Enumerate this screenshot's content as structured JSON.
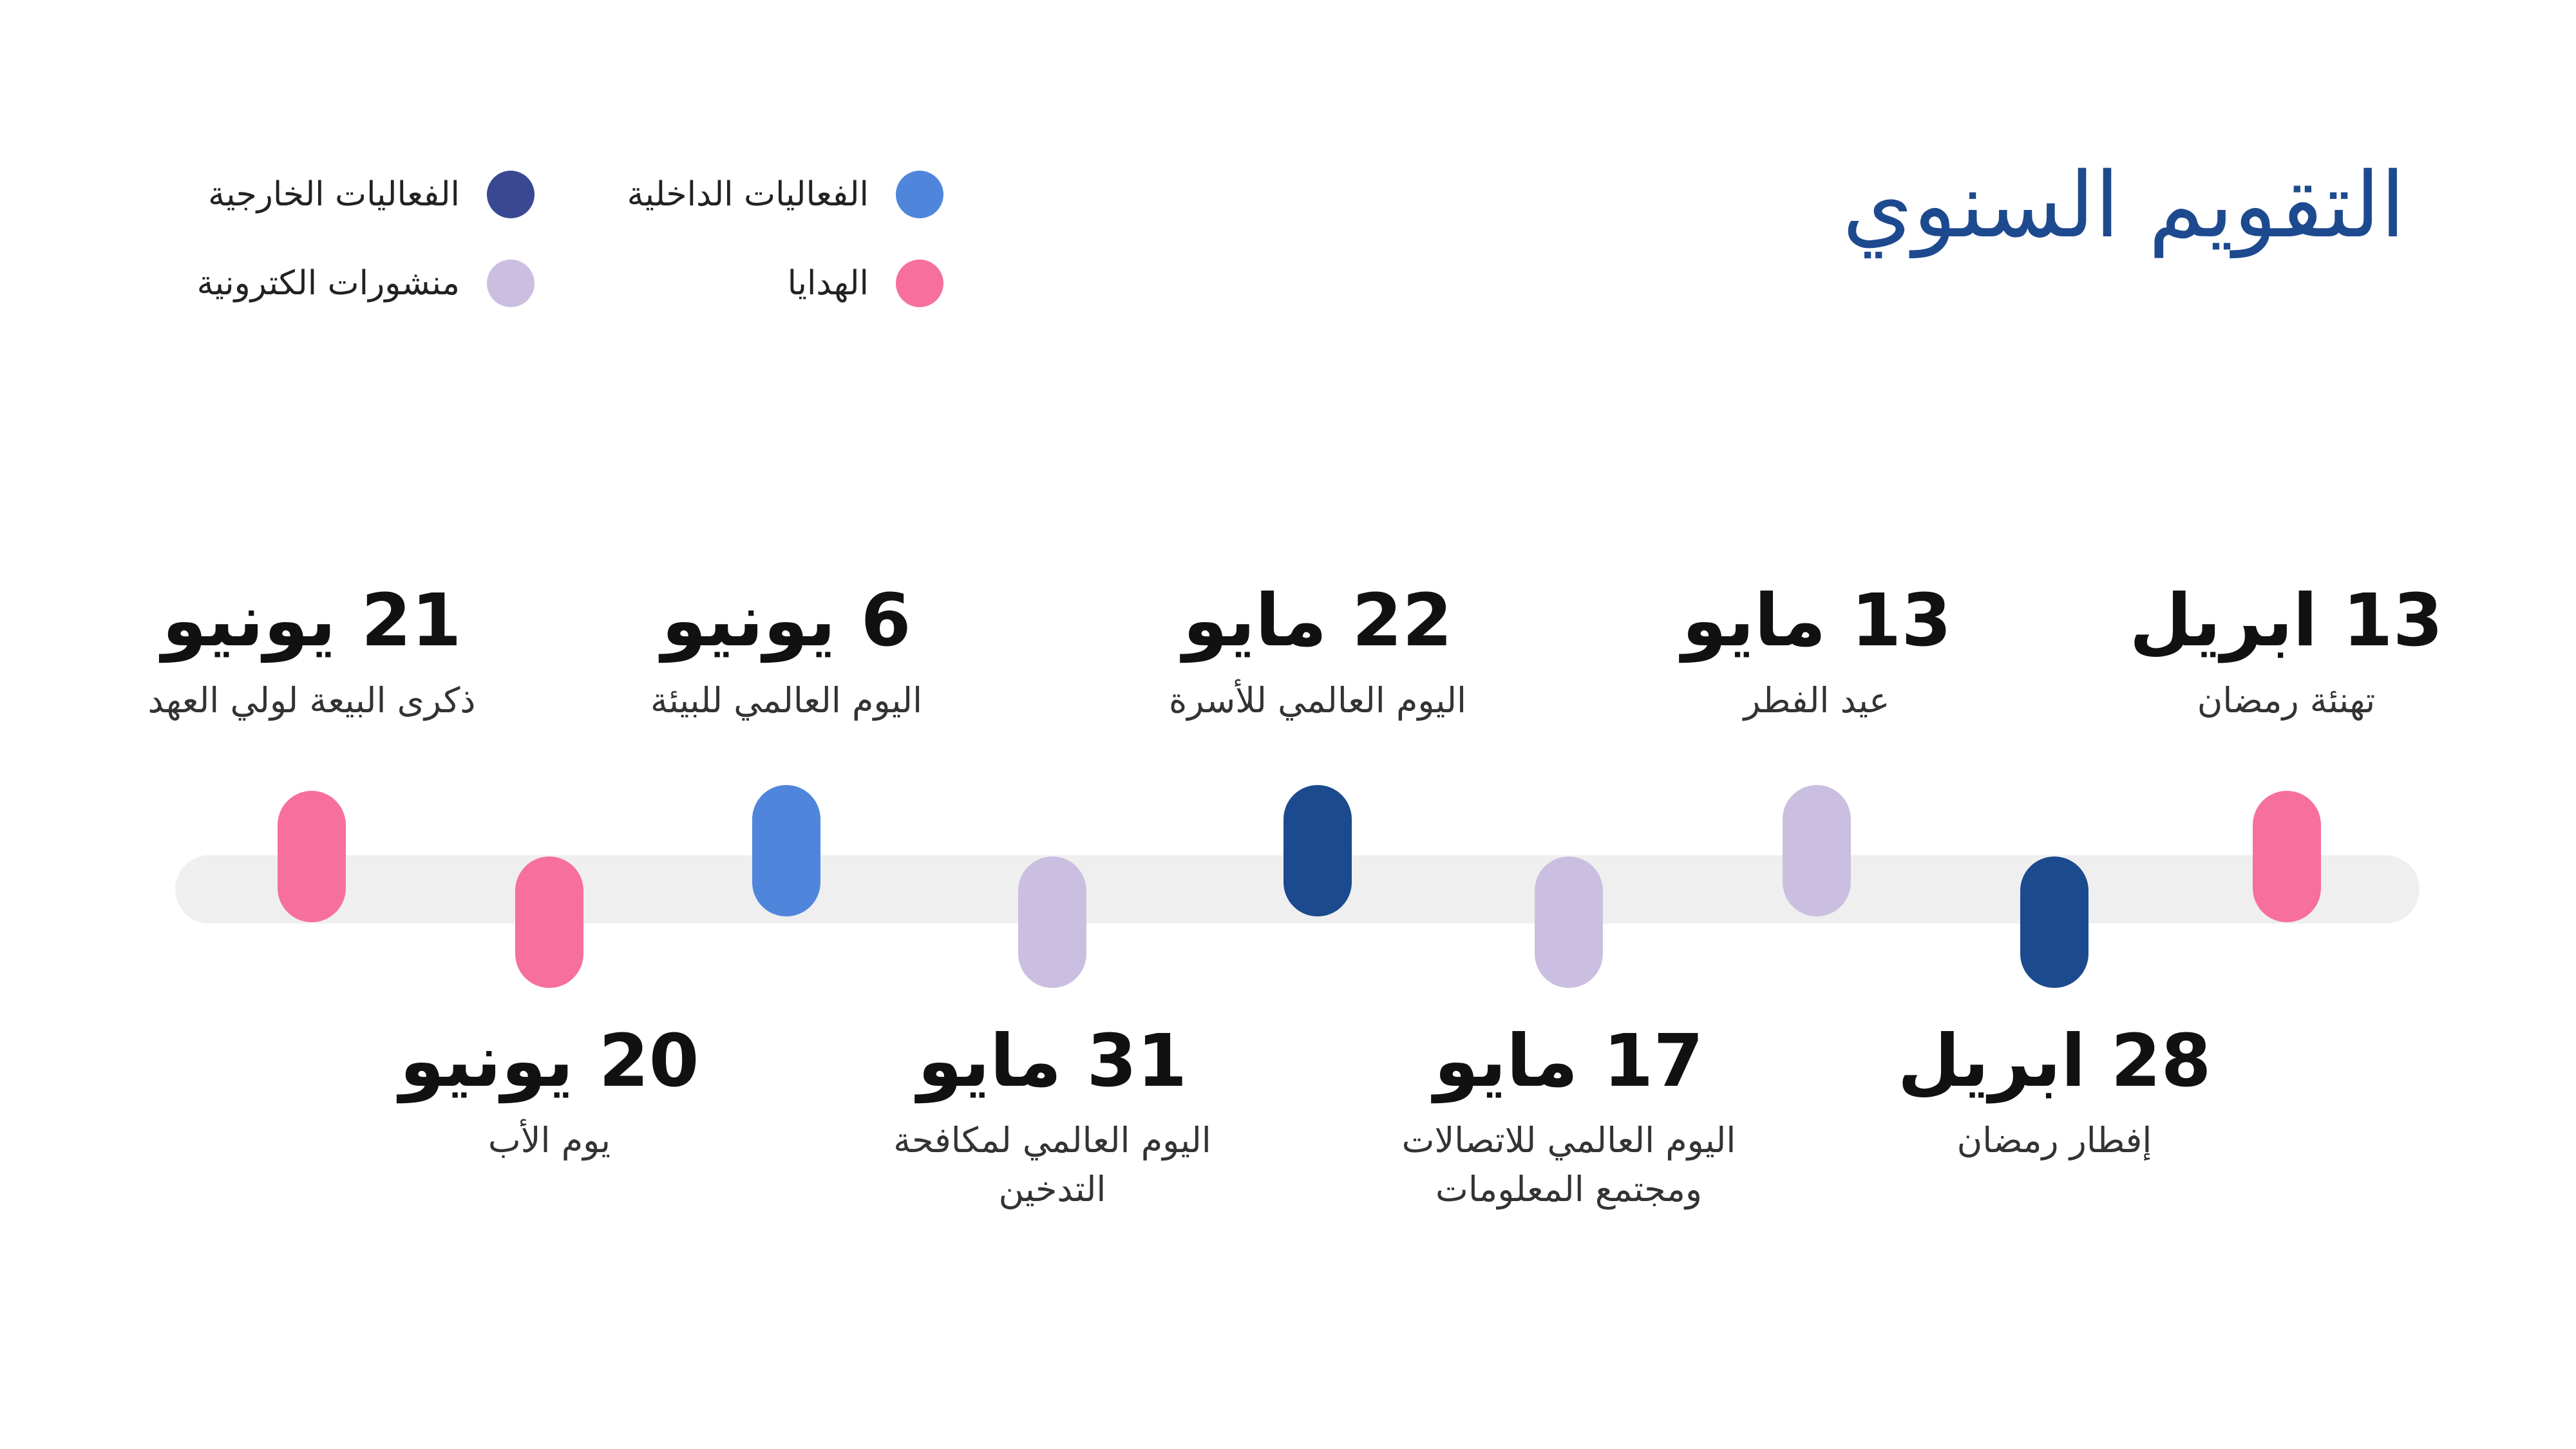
{
  "title": "التقويم السنوي",
  "legend": [
    {
      "label": "الفعاليات الداخلية",
      "color": "#4f86dc"
    },
    {
      "label": "الفعاليات الخارجية",
      "color": "#3a4893"
    },
    {
      "label": "الهدايا",
      "color": "#f76f9c"
    },
    {
      "label": "منشورات الكترونية",
      "color": "#cbbfe1"
    }
  ],
  "events": [
    {
      "date": "13 ابريل",
      "label": "تهنئة رمضان",
      "color": "#f76f9c",
      "position": "top"
    },
    {
      "date": "28 ابريل",
      "label": "إفطار رمضان",
      "color": "#1c4a8f",
      "position": "bottom"
    },
    {
      "date": "13 مايو",
      "label": "عيد الفطر",
      "color": "#cbbfe1",
      "position": "top"
    },
    {
      "date": "17 مايو",
      "label": "اليوم العالمي للاتصالات ومجتمع المعلومات",
      "color": "#cbbfe1",
      "position": "bottom"
    },
    {
      "date": "22 مايو",
      "label": "اليوم العالمي للأسرة",
      "color": "#1c4a8f",
      "position": "top"
    },
    {
      "date": "31 مايو",
      "label": "اليوم العالمي لمكافحة التدخين",
      "color": "#cbbfe1",
      "position": "bottom"
    },
    {
      "date": "6 يونيو",
      "label": "اليوم العالمي للبيئة",
      "color": "#4f86dc",
      "position": "top"
    },
    {
      "date": "20 يونيو",
      "label": "يوم الأب",
      "color": "#f76f9c",
      "position": "bottom"
    },
    {
      "date": "21 يونيو",
      "label": "ذكرى البيعة لولي العهد",
      "color": "#f76f9c",
      "position": "top"
    }
  ]
}
